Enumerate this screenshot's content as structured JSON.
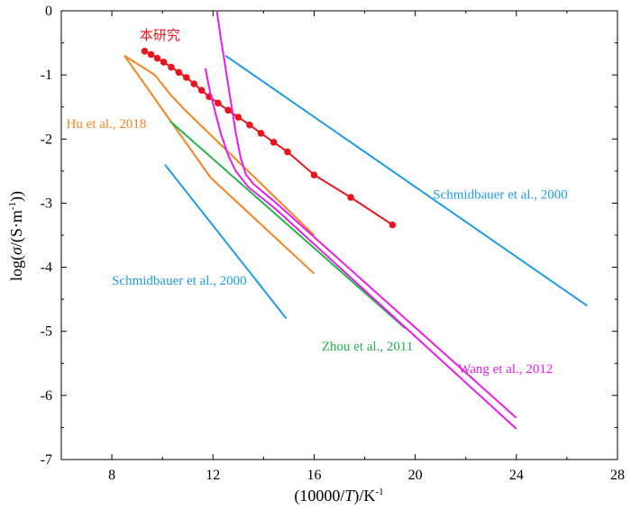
{
  "chart_data": {
    "type": "line",
    "xlabel_prefix": "(10000/",
    "xlabel_var": "T",
    "xlabel_suffix": ")/K",
    "xlabel_sup": "-1",
    "ylabel_prefix": "log(",
    "ylabel_var": "σ",
    "ylabel_mid": "/(S·m",
    "ylabel_sup": "-1",
    "ylabel_suffix": "))",
    "xlim": [
      6,
      28
    ],
    "ylim": [
      -7,
      0
    ],
    "xticks": [
      8,
      12,
      16,
      20,
      24,
      28
    ],
    "xtick_labels": [
      "8",
      "12",
      "16",
      "20",
      "24",
      "28"
    ],
    "yticks": [
      0,
      -1,
      -2,
      -3,
      -4,
      -5,
      -6,
      -7
    ],
    "ytick_labels": [
      "0",
      "-1",
      "-2",
      "-3",
      "-4",
      "-5",
      "-6",
      "-7"
    ],
    "grid": false,
    "series": [
      {
        "label": "本研究",
        "color": "#e8141e",
        "markers": true,
        "points": [
          [
            9.3,
            -0.63
          ],
          [
            9.55,
            -0.68
          ],
          [
            9.8,
            -0.74
          ],
          [
            10.05,
            -0.8
          ],
          [
            10.35,
            -0.88
          ],
          [
            10.65,
            -0.96
          ],
          [
            10.95,
            -1.04
          ],
          [
            11.25,
            -1.14
          ],
          [
            11.55,
            -1.24
          ],
          [
            11.85,
            -1.34
          ],
          [
            12.2,
            -1.44
          ],
          [
            12.6,
            -1.55
          ],
          [
            13.0,
            -1.66
          ],
          [
            13.45,
            -1.78
          ],
          [
            13.9,
            -1.91
          ],
          [
            14.4,
            -2.05
          ],
          [
            14.95,
            -2.2
          ],
          [
            16.0,
            -2.56
          ],
          [
            17.45,
            -2.91
          ],
          [
            19.1,
            -3.34
          ]
        ]
      },
      {
        "label": "Hu et al., 2018",
        "color": "#f5821e",
        "markers": false,
        "lines": [
          [
            [
              8.5,
              -0.7
            ],
            [
              9.7,
              -1.0
            ],
            [
              10.3,
              -1.3
            ],
            [
              10.9,
              -1.55
            ],
            [
              16.0,
              -3.5
            ]
          ],
          [
            [
              8.5,
              -0.7
            ],
            [
              11.9,
              -2.6
            ],
            [
              16.0,
              -4.1
            ]
          ]
        ]
      },
      {
        "label": "Zhou et al., 2011",
        "color": "#22b24c",
        "markers": false,
        "lines": [
          [
            [
              10.3,
              -1.72
            ],
            [
              19.6,
              -4.95
            ]
          ]
        ]
      },
      {
        "label": "Wang et al., 2012",
        "color": "#e81ce8",
        "markers": false,
        "lines": [
          [
            [
              12.15,
              0
            ],
            [
              12.3,
              -0.4
            ],
            [
              12.5,
              -0.9
            ],
            [
              12.7,
              -1.4
            ],
            [
              12.9,
              -1.9
            ],
            [
              13.1,
              -2.3
            ],
            [
              13.3,
              -2.55
            ],
            [
              13.6,
              -2.7
            ],
            [
              14.5,
              -3.0
            ],
            [
              24.0,
              -6.35
            ]
          ],
          [
            [
              11.7,
              -0.9
            ],
            [
              11.9,
              -1.3
            ],
            [
              12.1,
              -1.6
            ],
            [
              12.3,
              -1.9
            ],
            [
              12.6,
              -2.25
            ],
            [
              12.9,
              -2.5
            ],
            [
              13.4,
              -2.75
            ],
            [
              14.5,
              -3.1
            ],
            [
              24.0,
              -6.52
            ]
          ]
        ]
      },
      {
        "label": "Schmidbauer et al., 2000",
        "color": "#1e9be8",
        "markers": false,
        "lines": [
          [
            [
              12.5,
              -0.7
            ],
            [
              26.8,
              -4.6
            ]
          ],
          [
            [
              10.1,
              -2.4
            ],
            [
              14.9,
              -4.8
            ]
          ]
        ]
      }
    ],
    "annotations": [
      {
        "text": "本研究",
        "color": "#e8141e",
        "at": [
          9.9,
          -0.45
        ],
        "anchor": "middle",
        "cjk": true
      },
      {
        "text": "Hu et al., 2018",
        "color": "#f5821e",
        "at": [
          6.2,
          -1.83
        ],
        "anchor": "start"
      },
      {
        "text": "Schmidbauer et al., 2000",
        "color": "#1e9be8",
        "at": [
          20.7,
          -2.93
        ],
        "anchor": "start"
      },
      {
        "text": "Schmidbauer et al., 2000",
        "color": "#1e9be8",
        "at": [
          8.0,
          -4.27
        ],
        "anchor": "start"
      },
      {
        "text": "Zhou et al., 2011",
        "color": "#22b24c",
        "at": [
          16.3,
          -5.3
        ],
        "anchor": "start"
      },
      {
        "text": "Wang et al., 2012",
        "color": "#e81ce8",
        "at": [
          21.7,
          -5.65
        ],
        "anchor": "start"
      }
    ]
  }
}
